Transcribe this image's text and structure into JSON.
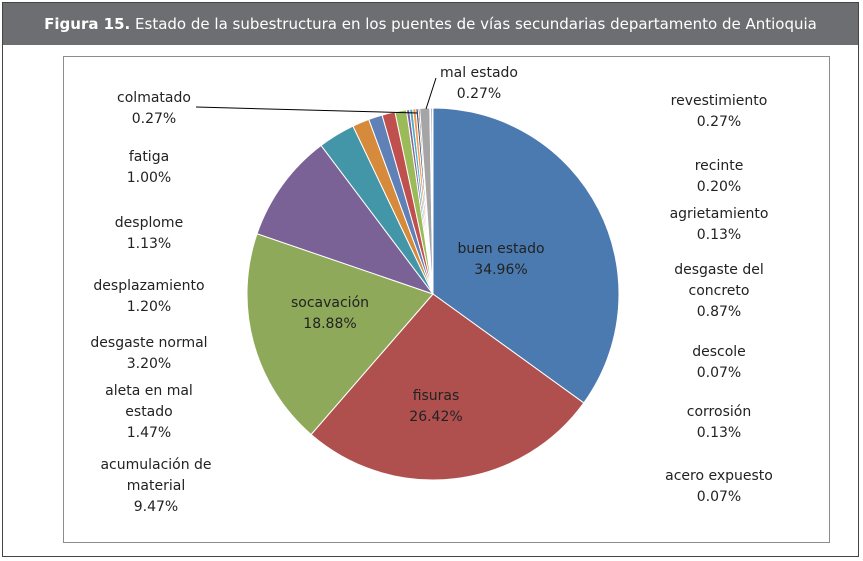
{
  "header": {
    "prefix": "Figura 15.",
    "title": "Estado de la subestructura en los puentes de vías secundarias departamento de Antioquia"
  },
  "chart_data": {
    "type": "pie",
    "slices": [
      {
        "name": "buen estado",
        "value": 34.96,
        "label": "34.96%",
        "color": "#4a7ab0"
      },
      {
        "name": "fisuras",
        "value": 26.42,
        "label": "26.42%",
        "color": "#b0504e"
      },
      {
        "name": "socavación",
        "value": 18.88,
        "label": "18.88%",
        "color": "#8fa95a"
      },
      {
        "name": "acumulación de material",
        "value": 9.47,
        "label": "9.47%",
        "color": "#7a6196"
      },
      {
        "name": "desgaste normal",
        "value": 3.2,
        "label": "3.20%",
        "color": "#4296a8"
      },
      {
        "name": "aleta en mal estado",
        "value": 1.47,
        "label": "1.47%",
        "color": "#d68a3c"
      },
      {
        "name": "desplazamiento",
        "value": 1.2,
        "label": "1.20%",
        "color": "#5f81b7"
      },
      {
        "name": "desplome",
        "value": 1.13,
        "label": "1.13%",
        "color": "#c0504d"
      },
      {
        "name": "fatiga",
        "value": 1.0,
        "label": "1.00%",
        "color": "#9bbb59"
      },
      {
        "name": "colmatado",
        "value": 0.27,
        "label": "0.27%",
        "color": "#8064a2"
      },
      {
        "name": "mal estado",
        "value": 0.27,
        "label": "0.27%",
        "color": "#4bacc6"
      },
      {
        "name": "revestimiento",
        "value": 0.27,
        "label": "0.27%",
        "color": "#f79646"
      },
      {
        "name": "recinte",
        "value": 0.2,
        "label": "0.20%",
        "color": "#2c4d75"
      },
      {
        "name": "agrietamiento",
        "value": 0.13,
        "label": "0.13%",
        "color": "#772c2a"
      },
      {
        "name": "desgaste del concreto",
        "value": 0.87,
        "label": "0.87%",
        "color": "#a5a5a5"
      },
      {
        "name": "descole",
        "value": 0.07,
        "label": "0.07%",
        "color": "#5f7530"
      },
      {
        "name": "corrosión",
        "value": 0.13,
        "label": "0.13%",
        "color": "#4d3b62"
      },
      {
        "name": "acero expuesto",
        "value": 0.07,
        "label": "0.07%",
        "color": "#276a7c"
      }
    ]
  }
}
